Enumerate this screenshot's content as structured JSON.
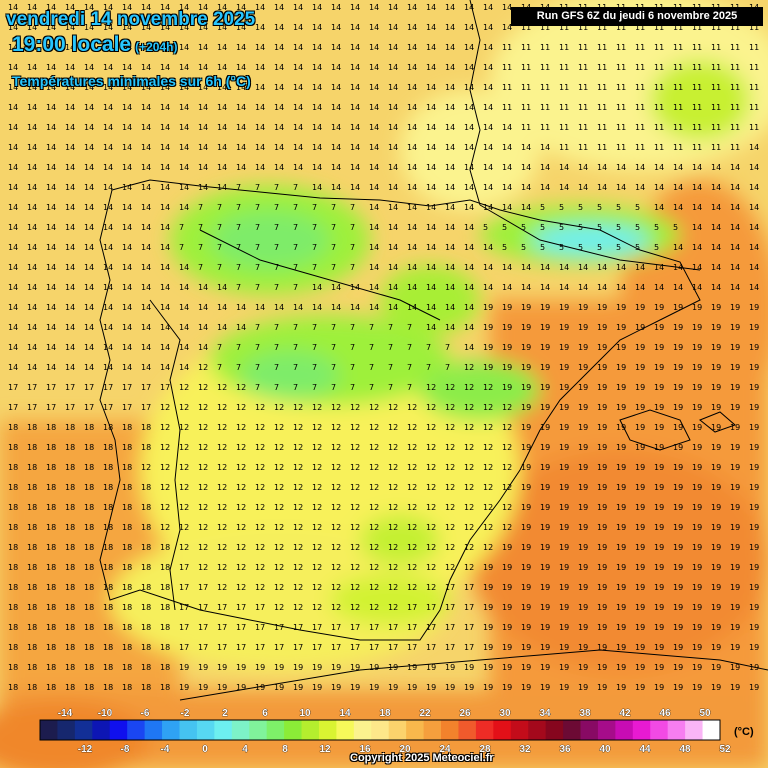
{
  "header": {
    "date": "vendredi 14 novembre 2025",
    "time": "19:00 locale",
    "offset": "(+204h)",
    "field": "Températures minimales sur 6h (°C)",
    "run": "Run GFS 6Z du jeudi 6 novembre 2025"
  },
  "footer": {
    "copyright": "Copyright 2025 Meteociel.fr"
  },
  "legend": {
    "unit": "(°C)",
    "colors": [
      "#1c1c4e",
      "#16276e",
      "#122f96",
      "#0d16b4",
      "#1010ee",
      "#1a46f2",
      "#1f77f4",
      "#2fa2f4",
      "#45c3f1",
      "#57d8f2",
      "#6deff0",
      "#7df3c8",
      "#80f39b",
      "#7ef069",
      "#8bec37",
      "#b4ee2e",
      "#d9f432",
      "#f6f95a",
      "#fbf38e",
      "#fde78a",
      "#fbd36c",
      "#f8b84c",
      "#f59f3d",
      "#f2822c",
      "#f05a2c",
      "#ee2c26",
      "#e31018",
      "#c30c1a",
      "#a4091c",
      "#86061e",
      "#6c0a34",
      "#880a64",
      "#a60c8a",
      "#c80cb4",
      "#e81ad2",
      "#f24ae4",
      "#f67ef0",
      "#fab5f6",
      "#ffffff"
    ],
    "upper_labels": [
      "-14",
      "-10",
      "-6",
      "-2",
      "2",
      "6",
      "10",
      "14",
      "18",
      "22",
      "26",
      "30",
      "34",
      "38",
      "42",
      "46",
      "50"
    ],
    "lower_labels": [
      "-12",
      "-8",
      "-4",
      "0",
      "4",
      "8",
      "12",
      "16",
      "20",
      "24",
      "28",
      "32",
      "36",
      "40",
      "44",
      "48",
      "52"
    ]
  }
}
